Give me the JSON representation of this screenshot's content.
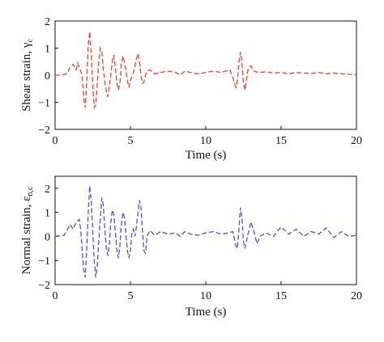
{
  "chart_data": [
    {
      "type": "line",
      "xlabel": "Time (s)",
      "ylabel": "Shear strain, γ",
      "ylabel_sub": "c",
      "xlim": [
        0,
        20
      ],
      "ylim": [
        -2,
        2
      ],
      "xticks": [
        "0",
        "5",
        "10",
        "15",
        "20"
      ],
      "yticks": [
        "2",
        "1",
        "0",
        "−1",
        "−2"
      ],
      "grid": false,
      "series": [
        {
          "color": "#e8412a",
          "line_style": "dashed",
          "x": [
            0.0,
            0.4,
            0.8,
            1.0,
            1.2,
            1.4,
            1.5,
            1.6,
            1.8,
            1.9,
            2.0,
            2.1,
            2.2,
            2.3,
            2.4,
            2.5,
            2.6,
            2.7,
            2.8,
            2.9,
            3.0,
            3.1,
            3.2,
            3.4,
            3.5,
            3.6,
            3.8,
            3.9,
            4.0,
            4.1,
            4.2,
            4.3,
            4.4,
            4.5,
            4.6,
            4.8,
            4.9,
            5.0,
            5.2,
            5.4,
            5.5,
            5.6,
            5.7,
            5.8,
            5.9,
            6.0,
            6.1,
            6.3,
            6.6,
            7.0,
            7.5,
            8.0,
            8.3,
            8.6,
            9.0,
            9.5,
            10.0,
            10.5,
            11.0,
            11.3,
            11.6,
            11.8,
            12.0,
            12.1,
            12.2,
            12.3,
            12.4,
            12.5,
            12.6,
            12.8,
            13.0,
            13.2,
            13.5,
            14.0,
            14.5,
            15.0,
            15.5,
            16.0,
            16.5,
            17.0,
            17.5,
            18.0,
            18.5,
            19.0,
            19.5,
            20.0
          ],
          "y": [
            0.0,
            0.0,
            0.05,
            0.3,
            0.4,
            0.2,
            0.45,
            0.3,
            0.0,
            -0.8,
            -1.2,
            -0.2,
            1.1,
            1.6,
            0.8,
            -0.4,
            -1.2,
            -1.1,
            -0.3,
            0.5,
            1.0,
            0.9,
            0.2,
            -0.6,
            -0.8,
            -0.4,
            0.5,
            0.75,
            0.3,
            -0.3,
            -0.55,
            -0.3,
            0.4,
            0.7,
            0.5,
            -0.2,
            -0.45,
            -0.2,
            0.1,
            0.6,
            0.8,
            0.5,
            0.0,
            -0.3,
            -0.25,
            0.0,
            0.15,
            0.2,
            0.05,
            0.1,
            0.15,
            0.1,
            0.0,
            0.15,
            0.1,
            0.05,
            0.1,
            0.15,
            0.1,
            0.15,
            0.2,
            -0.1,
            -0.45,
            -0.2,
            0.5,
            0.85,
            0.5,
            -0.3,
            -0.55,
            0.2,
            0.35,
            0.15,
            0.1,
            0.12,
            0.08,
            0.1,
            0.05,
            0.1,
            0.08,
            0.06,
            0.1,
            0.05,
            0.08,
            0.05,
            0.03,
            0.02
          ]
        }
      ]
    },
    {
      "type": "line",
      "xlabel": "Time (s)",
      "ylabel": "Normal strain, ε",
      "ylabel_sub": "n,c",
      "xlim": [
        0,
        20
      ],
      "ylim": [
        -2,
        2.5
      ],
      "xticks": [
        "0",
        "5",
        "10",
        "15",
        "20"
      ],
      "yticks": [
        "2",
        "1",
        "0",
        "−1",
        "−2"
      ],
      "grid": false,
      "series": [
        {
          "color": "#4f4fd6",
          "line_style": "dashed",
          "x": [
            0.0,
            0.6,
            1.0,
            1.2,
            1.4,
            1.6,
            1.7,
            1.8,
            1.9,
            2.0,
            2.1,
            2.2,
            2.3,
            2.4,
            2.5,
            2.6,
            2.7,
            2.8,
            2.9,
            3.0,
            3.1,
            3.2,
            3.3,
            3.4,
            3.5,
            3.6,
            3.7,
            3.8,
            3.9,
            4.0,
            4.1,
            4.2,
            4.3,
            4.4,
            4.5,
            4.6,
            4.7,
            4.8,
            4.9,
            5.0,
            5.1,
            5.2,
            5.3,
            5.4,
            5.5,
            5.6,
            5.7,
            5.8,
            5.9,
            6.0,
            6.1,
            6.3,
            6.6,
            7.0,
            7.5,
            8.0,
            8.3,
            8.6,
            9.0,
            9.5,
            10.0,
            10.5,
            11.0,
            11.5,
            11.8,
            12.0,
            12.1,
            12.2,
            12.3,
            12.4,
            12.5,
            12.6,
            12.8,
            13.0,
            13.2,
            13.4,
            13.6,
            14.0,
            14.5,
            15.0,
            15.5,
            16.0,
            16.5,
            17.0,
            17.5,
            18.0,
            18.5,
            19.0,
            19.5,
            20.0
          ],
          "y": [
            0.0,
            0.05,
            0.5,
            0.3,
            0.6,
            0.7,
            0.3,
            -0.6,
            -1.4,
            -1.7,
            -0.5,
            1.0,
            2.1,
            1.5,
            0.2,
            -1.0,
            -1.7,
            -1.2,
            -0.2,
            0.7,
            1.6,
            1.3,
            0.3,
            -0.5,
            -0.8,
            -0.3,
            0.6,
            1.1,
            0.9,
            0.2,
            -0.6,
            -0.9,
            -0.4,
            0.5,
            1.0,
            0.8,
            0.1,
            -0.6,
            -0.9,
            -0.6,
            0.2,
            0.3,
            0.0,
            0.4,
            1.0,
            1.5,
            1.2,
            0.2,
            -0.6,
            -0.7,
            0.0,
            0.25,
            0.05,
            0.2,
            0.1,
            0.15,
            0.0,
            0.2,
            0.1,
            0.05,
            0.15,
            0.2,
            0.1,
            0.15,
            0.2,
            -0.4,
            -0.5,
            0.3,
            1.2,
            0.8,
            -0.2,
            -0.5,
            0.1,
            0.6,
            0.2,
            -0.3,
            0.0,
            0.15,
            0.0,
            0.4,
            0.1,
            0.3,
            0.0,
            0.2,
            0.1,
            0.35,
            -0.05,
            0.2,
            0.0,
            0.05
          ]
        }
      ]
    }
  ],
  "colors": {
    "axis": "#111111",
    "shear_series": "#e8412a",
    "normal_series": "#4f4fd6"
  }
}
